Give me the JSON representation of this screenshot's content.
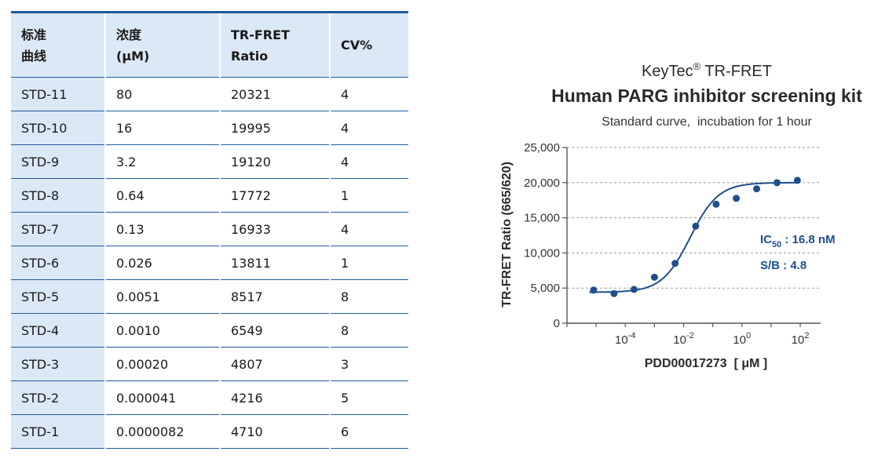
{
  "table": {
    "headers": [
      [
        "标准",
        "曲线"
      ],
      [
        "浓度",
        "(μM)"
      ],
      [
        "TR-FRET",
        "Ratio"
      ],
      [
        "CV%"
      ]
    ],
    "rows": [
      [
        "STD-11",
        "80",
        "20321",
        "4"
      ],
      [
        "STD-10",
        "16",
        "19995",
        "4"
      ],
      [
        "STD-9",
        "3.2",
        "19120",
        "4"
      ],
      [
        "STD-8",
        "0.64",
        "17772",
        "1"
      ],
      [
        "STD-7",
        "0.13",
        "16933",
        "4"
      ],
      [
        "STD-6",
        "0.026",
        "13811",
        "1"
      ],
      [
        "STD-5",
        "0.0051",
        "8517",
        "8"
      ],
      [
        "STD-4",
        "0.0010",
        "6549",
        "8"
      ],
      [
        "STD-3",
        "0.00020",
        "4807",
        "3"
      ],
      [
        "STD-2",
        "0.000041",
        "4216",
        "5"
      ],
      [
        "STD-1",
        "0.0000082",
        "4710",
        "6"
      ]
    ]
  },
  "colors": {
    "accent": "#1e5b9c",
    "header_bg": "#dbe8f6",
    "points": "#1f4e8c",
    "gridline": "#9a9a9a"
  },
  "chart_data": {
    "type": "scatter",
    "title_brand": "KeyTec",
    "title_reg": "®",
    "title_suffix": " TR-FRET",
    "title": "Human PARG inhibitor screening kit",
    "subtitle": "Standard curve,  incubation for 1 hour",
    "xlabel": "PDD00017273  [ μM ]",
    "ylabel": "TR-FRET Ratio (665/620)",
    "xscale": "log",
    "xlim": [
      1e-06,
      500
    ],
    "ylim": [
      0,
      25000
    ],
    "yticks": [
      0,
      5000,
      10000,
      15000,
      20000,
      25000
    ],
    "ytick_labels": [
      "0",
      "5,000",
      "10,000",
      "15,000",
      "20,000",
      "25,000"
    ],
    "xtick_exponents": [
      "-4",
      "-2",
      "0",
      "2"
    ],
    "xtick_base": "10",
    "x": [
      8.2e-06,
      4.1e-05,
      0.0002,
      0.001,
      0.0051,
      0.026,
      0.13,
      0.64,
      3.2,
      16,
      80
    ],
    "y": [
      4710,
      4216,
      4807,
      6549,
      8517,
      13811,
      16933,
      17772,
      19120,
      19995,
      20321
    ],
    "fit": {
      "bottom": 4400,
      "top": 20000,
      "ic50_um": 0.0168,
      "hill": 0.9
    },
    "annotation_ic": "IC",
    "annotation_ic_sub": "50",
    "annotation_ic_value": " : 16.8 nM",
    "annotation_sb": "S/B : 4.8",
    "grid": "horizontal dashed"
  }
}
